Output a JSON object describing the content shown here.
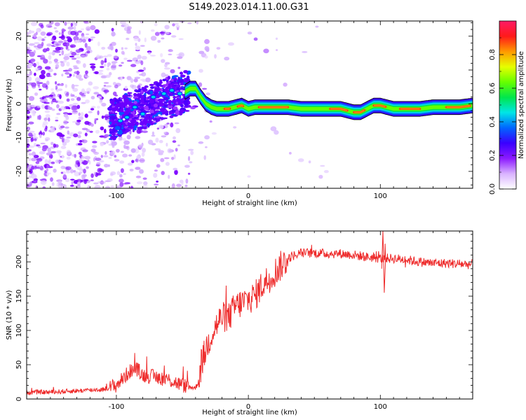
{
  "title": "S149.2023.014.11.00.G31",
  "chart_data": [
    {
      "type": "heatmap",
      "xlabel": "Height of straight line (km)",
      "ylabel": "Frequency (Hz)",
      "xlim": [
        -168,
        170
      ],
      "ylim": [
        -25,
        24.5
      ],
      "xticks": [
        -100,
        0,
        100
      ],
      "yticks": [
        -20,
        -10,
        0,
        10,
        20
      ],
      "colorbar": {
        "label": "Normalized spectral amplitude",
        "range": [
          0,
          1
        ],
        "ticks": [
          0.0,
          0.2,
          0.4,
          0.6,
          0.8
        ],
        "colors": [
          "#ffffff",
          "#d9b3ff",
          "#8c1aff",
          "#3a00ff",
          "#0066ff",
          "#00e6e6",
          "#00e64d",
          "#66ff00",
          "#e6ff00",
          "#ff9900",
          "#ff1a1a",
          "#ff1a66"
        ]
      },
      "ridge": {
        "x": [
          -48,
          -44,
          -40,
          -36,
          -32,
          -28,
          -24,
          -20,
          -15,
          -10,
          -5,
          0,
          5,
          10,
          20,
          30,
          40,
          50,
          60,
          70,
          75,
          80,
          85,
          90,
          95,
          100,
          110,
          120,
          130,
          140,
          150,
          160,
          170
        ],
        "y": [
          3.5,
          4.5,
          4.5,
          2.0,
          0.0,
          -1.0,
          -1.5,
          -1.5,
          -1.5,
          -1.0,
          -0.5,
          -1.5,
          -1.0,
          -1.0,
          -1.0,
          -1.0,
          -1.5,
          -1.5,
          -1.5,
          -1.5,
          -2.0,
          -2.5,
          -2.5,
          -1.5,
          -0.5,
          -0.5,
          -1.5,
          -1.5,
          -1.5,
          -1.0,
          -1.0,
          -1.0,
          -0.5
        ]
      }
    },
    {
      "type": "line",
      "xlabel": "Height of straight line (km)",
      "ylabel": "SNR (10 * v/v)",
      "xlim": [
        -168,
        170
      ],
      "ylim": [
        0,
        245
      ],
      "xticks": [
        -100,
        0,
        100
      ],
      "yticks": [
        0,
        50,
        100,
        150,
        200
      ],
      "color": "#ee2b2b",
      "series": [
        {
          "x": [
            -168,
            -150,
            -130,
            -110,
            -100,
            -95,
            -90,
            -85,
            -80,
            -70,
            -60,
            -50,
            -45,
            -40,
            -38,
            -35,
            -30,
            -25,
            -20,
            -15,
            -10,
            -5,
            0,
            5,
            10,
            15,
            20,
            25,
            30,
            35,
            40,
            50,
            60,
            70,
            80,
            90,
            100,
            110,
            120,
            130,
            140,
            150,
            160,
            170
          ],
          "values": [
            10,
            10,
            12,
            14,
            20,
            30,
            40,
            45,
            35,
            32,
            28,
            20,
            18,
            16,
            25,
            55,
            85,
            105,
            120,
            118,
            135,
            140,
            145,
            150,
            165,
            175,
            185,
            195,
            205,
            210,
            213,
            213,
            212,
            212,
            210,
            207,
            205,
            205,
            203,
            200,
            198,
            198,
            197,
            196
          ]
        }
      ]
    }
  ]
}
